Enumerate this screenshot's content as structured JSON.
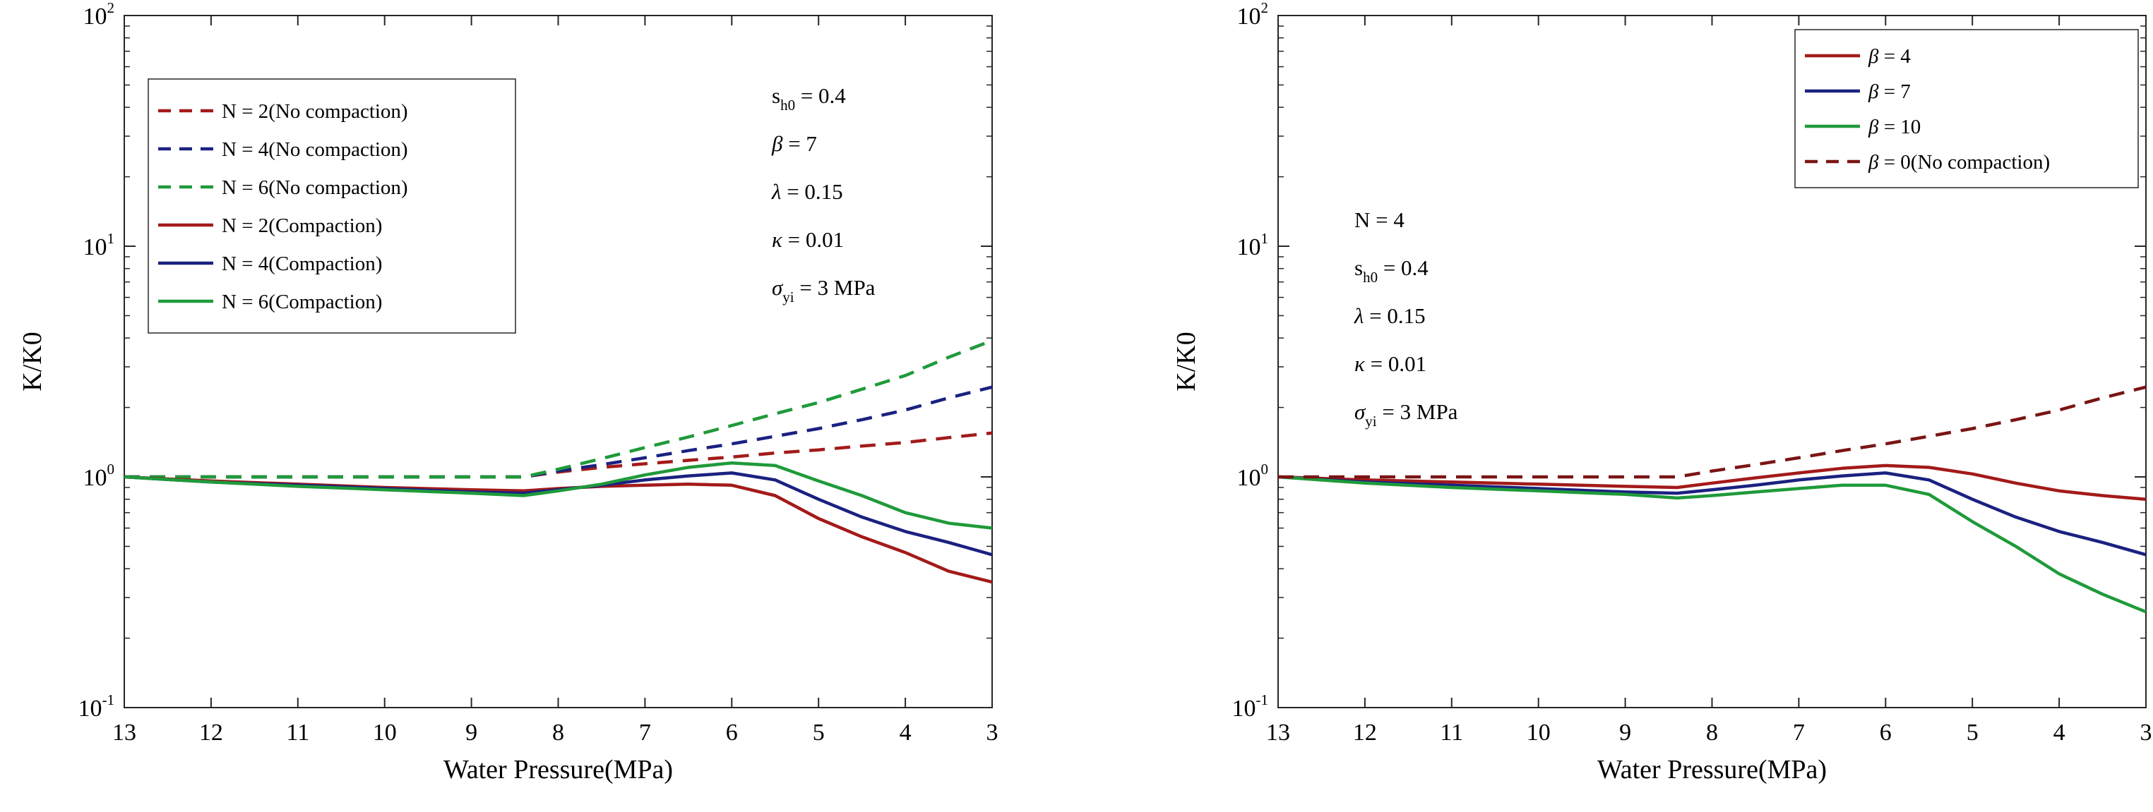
{
  "chart_data": [
    {
      "type": "line",
      "xlabel": "Water Pressure(MPa)",
      "ylabel": "K/K0",
      "x_reversed": true,
      "xlim": [
        13,
        3
      ],
      "ylim": [
        0.1,
        100
      ],
      "y_scale": "log",
      "x_ticks": [
        "13",
        "12",
        "11",
        "10",
        "9",
        "8",
        "7",
        "6",
        "5",
        "4",
        "3"
      ],
      "y_ticks": [
        {
          "base": "10",
          "exp": "-1",
          "value": 0.1
        },
        {
          "base": "10",
          "exp": "0",
          "value": 1
        },
        {
          "base": "10",
          "exp": "1",
          "value": 10
        },
        {
          "base": "10",
          "exp": "2",
          "value": 100
        }
      ],
      "legend_placement": "top-left",
      "grid": false,
      "series": [
        {
          "name": "N = 2(No compaction)",
          "color": "#a31a1a",
          "dash": true,
          "x": [
            13,
            12,
            11,
            10,
            9,
            8.4,
            8,
            7.5,
            7,
            6.5,
            6,
            5.5,
            5,
            4.5,
            4,
            3.5,
            3
          ],
          "y": [
            1.0,
            1.0,
            1.0,
            1.0,
            1.0,
            1.0,
            1.05,
            1.1,
            1.14,
            1.18,
            1.22,
            1.27,
            1.31,
            1.36,
            1.41,
            1.48,
            1.55
          ]
        },
        {
          "name": "N = 4(No compaction)",
          "color": "#1a2180",
          "dash": true,
          "x": [
            13,
            12,
            11,
            10,
            9,
            8.4,
            8,
            7.5,
            7,
            6.5,
            6,
            5.5,
            5,
            4.5,
            4,
            3.5,
            3
          ],
          "y": [
            1.0,
            1.0,
            1.0,
            1.0,
            1.0,
            1.0,
            1.06,
            1.13,
            1.21,
            1.3,
            1.39,
            1.5,
            1.62,
            1.77,
            1.95,
            2.2,
            2.45
          ]
        },
        {
          "name": "N = 6(No compaction)",
          "color": "#1f9a3a",
          "dash": true,
          "x": [
            13,
            12,
            11,
            10,
            9,
            8.4,
            8,
            7.5,
            7,
            6.5,
            6,
            5.5,
            5,
            4.5,
            4,
            3.5,
            3
          ],
          "y": [
            1.0,
            1.0,
            1.0,
            1.0,
            1.0,
            1.0,
            1.08,
            1.2,
            1.34,
            1.49,
            1.67,
            1.88,
            2.1,
            2.4,
            2.75,
            3.3,
            3.9
          ]
        },
        {
          "name": "N = 2(Compaction)",
          "color": "#a31a1a",
          "dash": false,
          "x": [
            13,
            12,
            11,
            10,
            9,
            8.4,
            8,
            7.5,
            7,
            6.5,
            6,
            5.5,
            5,
            4.5,
            4,
            3.5,
            3
          ],
          "y": [
            1.0,
            0.96,
            0.93,
            0.9,
            0.88,
            0.87,
            0.89,
            0.91,
            0.92,
            0.93,
            0.92,
            0.83,
            0.66,
            0.55,
            0.47,
            0.39,
            0.35
          ]
        },
        {
          "name": "N = 4(Compaction)",
          "color": "#1a2180",
          "dash": false,
          "x": [
            13,
            12,
            11,
            10,
            9,
            8.4,
            8,
            7.5,
            7,
            6.5,
            6,
            5.5,
            5,
            4.5,
            4,
            3.5,
            3
          ],
          "y": [
            1.0,
            0.95,
            0.92,
            0.89,
            0.86,
            0.85,
            0.88,
            0.92,
            0.97,
            1.01,
            1.04,
            0.97,
            0.8,
            0.67,
            0.58,
            0.52,
            0.46
          ]
        },
        {
          "name": "N = 6(Compaction)",
          "color": "#1f9a3a",
          "dash": false,
          "x": [
            13,
            12,
            11,
            10,
            9,
            8.4,
            8,
            7.5,
            7,
            6.5,
            6,
            5.5,
            5,
            4.5,
            4,
            3.5,
            3
          ],
          "y": [
            1.0,
            0.95,
            0.91,
            0.88,
            0.85,
            0.83,
            0.87,
            0.93,
            1.02,
            1.1,
            1.15,
            1.12,
            0.96,
            0.83,
            0.7,
            0.63,
            0.6
          ]
        }
      ],
      "annotations": [
        {
          "parts": [
            {
              "t": "s"
            },
            {
              "t": "h0",
              "sub": true
            },
            {
              "t": " = 0.4"
            }
          ]
        },
        {
          "parts": [
            {
              "t": "β",
              "italic": true
            },
            {
              "t": " = 7"
            }
          ]
        },
        {
          "parts": [
            {
              "t": "λ",
              "italic": true
            },
            {
              "t": "  = 0.15"
            }
          ]
        },
        {
          "parts": [
            {
              "t": "κ",
              "italic": true
            },
            {
              "t": " = 0.01"
            }
          ]
        },
        {
          "parts": [
            {
              "t": "σ",
              "italic": true
            },
            {
              "t": "yi",
              "sub": true
            },
            {
              "t": " = 3 MPa"
            }
          ]
        }
      ]
    },
    {
      "type": "line",
      "xlabel": "Water Pressure(MPa)",
      "ylabel": "K/K0",
      "x_reversed": true,
      "xlim": [
        13,
        3
      ],
      "ylim": [
        0.1,
        100
      ],
      "y_scale": "log",
      "x_ticks": [
        "13",
        "12",
        "11",
        "10",
        "9",
        "8",
        "7",
        "6",
        "5",
        "4",
        "3"
      ],
      "y_ticks": [
        {
          "base": "10",
          "exp": "-1",
          "value": 0.1
        },
        {
          "base": "10",
          "exp": "0",
          "value": 1
        },
        {
          "base": "10",
          "exp": "1",
          "value": 10
        },
        {
          "base": "10",
          "exp": "2",
          "value": 100
        }
      ],
      "legend_placement": "top-right",
      "grid": false,
      "series": [
        {
          "name": "β = 4",
          "color": "#a31a1a",
          "dash": false,
          "x": [
            13,
            12,
            11,
            10,
            9,
            8.4,
            8,
            7.5,
            7,
            6.5,
            6,
            5.5,
            5,
            4.5,
            4,
            3.5,
            3
          ],
          "y": [
            1.0,
            0.97,
            0.95,
            0.93,
            0.91,
            0.9,
            0.94,
            0.99,
            1.04,
            1.09,
            1.12,
            1.1,
            1.03,
            0.94,
            0.87,
            0.83,
            0.8
          ]
        },
        {
          "name": "β = 7",
          "color": "#1a2180",
          "dash": false,
          "x": [
            13,
            12,
            11,
            10,
            9,
            8.4,
            8,
            7.5,
            7,
            6.5,
            6,
            5.5,
            5,
            4.5,
            4,
            3.5,
            3
          ],
          "y": [
            1.0,
            0.95,
            0.92,
            0.89,
            0.86,
            0.85,
            0.88,
            0.92,
            0.97,
            1.01,
            1.04,
            0.97,
            0.8,
            0.67,
            0.58,
            0.52,
            0.46
          ]
        },
        {
          "name": "β = 10",
          "color": "#1f9a3a",
          "dash": false,
          "x": [
            13,
            12,
            11,
            10,
            9,
            8.4,
            8,
            7.5,
            7,
            6.5,
            6,
            5.5,
            5,
            4.5,
            4,
            3.5,
            3
          ],
          "y": [
            1.0,
            0.94,
            0.9,
            0.87,
            0.84,
            0.81,
            0.83,
            0.86,
            0.89,
            0.92,
            0.92,
            0.84,
            0.64,
            0.5,
            0.38,
            0.31,
            0.26
          ]
        },
        {
          "name": "β = 0(No compaction)",
          "color": "#7a1414",
          "dash": true,
          "x": [
            13,
            12,
            11,
            10,
            9,
            8.4,
            8,
            7.5,
            7,
            6.5,
            6,
            5.5,
            5,
            4.5,
            4,
            3.5,
            3
          ],
          "y": [
            1.0,
            1.0,
            1.0,
            1.0,
            1.0,
            1.0,
            1.06,
            1.13,
            1.21,
            1.3,
            1.39,
            1.5,
            1.62,
            1.77,
            1.95,
            2.2,
            2.45
          ]
        }
      ],
      "annotations": [
        {
          "parts": [
            {
              "t": "N = 4"
            }
          ]
        },
        {
          "parts": [
            {
              "t": "s"
            },
            {
              "t": "h0",
              "sub": true
            },
            {
              "t": " = 0.4"
            }
          ]
        },
        {
          "parts": [
            {
              "t": "λ",
              "italic": true
            },
            {
              "t": "  = 0.15"
            }
          ]
        },
        {
          "parts": [
            {
              "t": "κ",
              "italic": true
            },
            {
              "t": " = 0.01"
            }
          ]
        },
        {
          "parts": [
            {
              "t": "σ",
              "italic": true
            },
            {
              "t": "yi",
              "sub": true
            },
            {
              "t": " = 3 MPa"
            }
          ]
        }
      ]
    }
  ]
}
